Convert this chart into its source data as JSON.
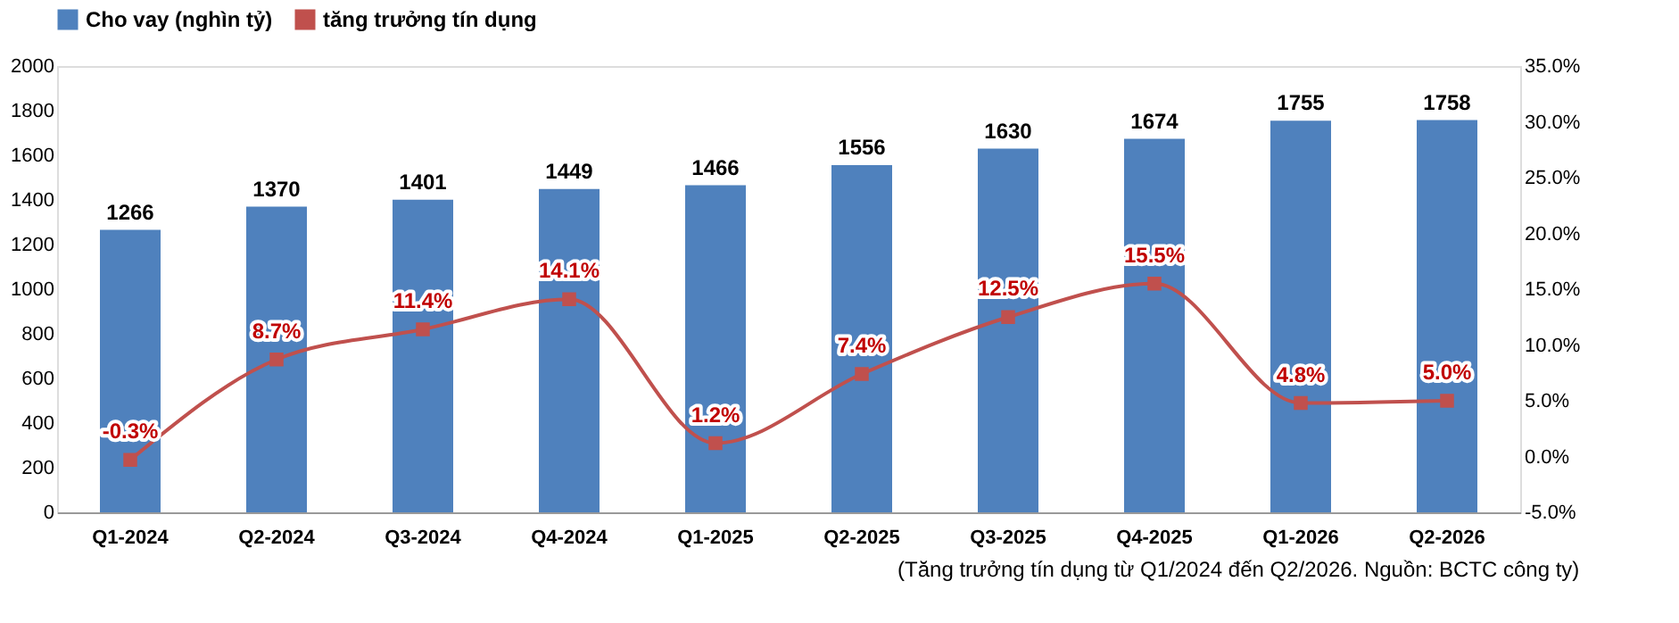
{
  "chart_data": {
    "type": "bar",
    "categories": [
      "Q1-2024",
      "Q2-2024",
      "Q3-2024",
      "Q4-2024",
      "Q1-2025",
      "Q2-2025",
      "Q3-2025",
      "Q4-2025",
      "Q1-2026",
      "Q2-2026"
    ],
    "series": [
      {
        "name": "Cho vay (nghìn tỷ)",
        "color": "#4f81bd",
        "values": [
          1266,
          1370,
          1401,
          1449,
          1466,
          1556,
          1630,
          1674,
          1755,
          1758
        ],
        "data_labels": true
      },
      {
        "name": "tăng trưởng tín dụng",
        "type": "line",
        "axis": "y2",
        "color": "#c0504d",
        "marker": "square",
        "values": [
          -0.3,
          8.7,
          11.4,
          14.1,
          1.2,
          7.4,
          12.5,
          15.5,
          4.8,
          5.0
        ],
        "value_labels": [
          "-0.3%",
          "8.7%",
          "11.4%",
          "14.1%",
          "1.2%",
          "7.4%",
          "12.5%",
          "15.5%",
          "4.8%",
          "5.0%"
        ]
      }
    ],
    "ylim": [
      0,
      2000
    ],
    "yticks": [
      0,
      200,
      400,
      600,
      800,
      1000,
      1200,
      1400,
      1600,
      1800,
      2000
    ],
    "y2lim": [
      -5,
      35
    ],
    "y2ticks": [
      {
        "value": -5,
        "label": "-5.0%"
      },
      {
        "value": 0,
        "label": "0.0%"
      },
      {
        "value": 5,
        "label": "5.0%"
      },
      {
        "value": 10,
        "label": "10.0%"
      },
      {
        "value": 15,
        "label": "15.0%"
      },
      {
        "value": 20,
        "label": "20.0%"
      },
      {
        "value": 25,
        "label": "25.0%"
      },
      {
        "value": 30,
        "label": "30.0%"
      },
      {
        "value": 35,
        "label": "35.0%"
      }
    ],
    "grid": false,
    "legend": "top",
    "annotations": [
      "(Tăng trưởng tín dụng từ Q1/2024 đến Q2/2026. Nguồn: BCTC công ty)"
    ]
  }
}
